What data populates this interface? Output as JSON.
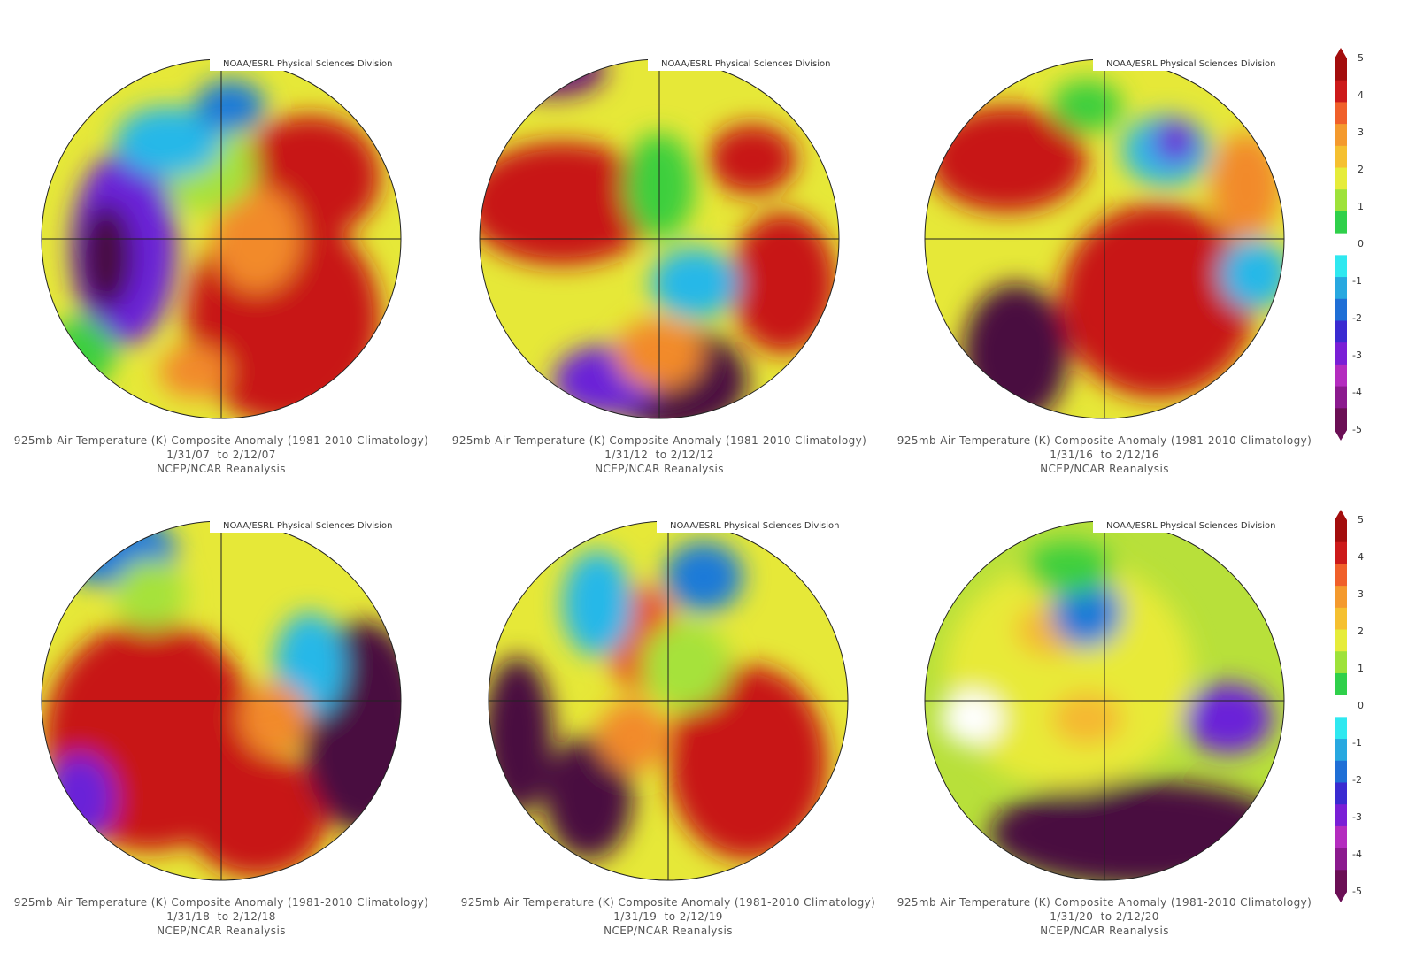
{
  "credit": "NOAA/ESRL Physical Sciences Division",
  "caption_line1": "925mb Air Temperature (K) Composite Anomaly (1981-2010 Climatology)",
  "caption_source": "NCEP/NCAR Reanalysis",
  "panels": [
    {
      "dates": "1/31/07  to 2/12/07"
    },
    {
      "dates": "1/31/12  to 2/12/12"
    },
    {
      "dates": "1/31/16  to 2/12/16"
    },
    {
      "dates": "1/31/18  to 2/12/18"
    },
    {
      "dates": "1/31/19  to 2/12/19"
    },
    {
      "dates": "1/31/20  to 2/12/20"
    }
  ],
  "colorbar": {
    "labels": [
      "5",
      "4",
      "3",
      "2",
      "1",
      "0",
      "-1",
      "-2",
      "-3",
      "-4",
      "-5"
    ],
    "colors": [
      "#6b0f55",
      "#8b1a8e",
      "#b42cbf",
      "#7a1fd6",
      "#3a2bd1",
      "#1f6fd6",
      "#28a8e0",
      "#2fe8f0",
      "#ffffff",
      "#2fd04a",
      "#9ee23a",
      "#e6ec3a",
      "#f5c030",
      "#f49a2e",
      "#f0602a",
      "#cc1a1a",
      "#a30d0d"
    ]
  }
}
